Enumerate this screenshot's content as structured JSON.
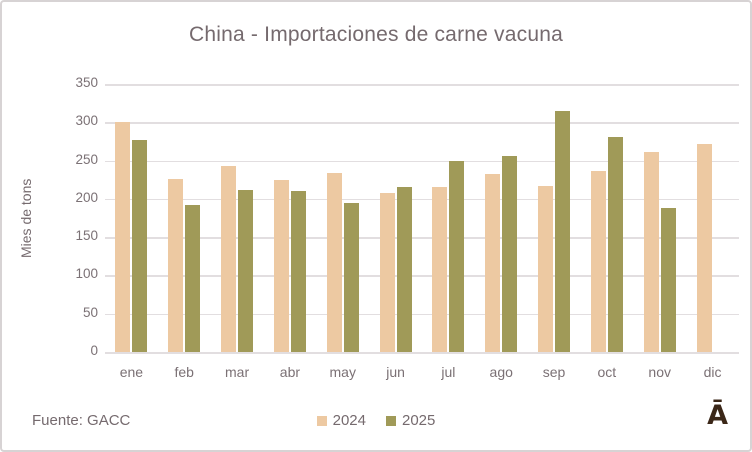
{
  "chart_data": {
    "type": "bar",
    "title": "China - Importaciones de carne vacuna",
    "xlabel": "",
    "ylabel": "Mies de tons",
    "categories": [
      "ene",
      "feb",
      "mar",
      "abr",
      "may",
      "jun",
      "jul",
      "ago",
      "sep",
      "oct",
      "nov",
      "dic"
    ],
    "series": [
      {
        "name": "2024",
        "color": "#edc9a2",
        "values": [
          301,
          226,
          243,
          224,
          234,
          208,
          215,
          232,
          217,
          237,
          261,
          272
        ]
      },
      {
        "name": "2025",
        "color": "#a09a58",
        "values": [
          277,
          192,
          212,
          210,
          194,
          216,
          250,
          256,
          315,
          281,
          188,
          null
        ]
      }
    ],
    "ylim": [
      0,
      350
    ],
    "ytick_step": 50,
    "grid": true,
    "legend_position": "bottom-center"
  },
  "footer": {
    "source": "Fuente: GACC",
    "logo": "Ā"
  },
  "colors": {
    "background": "#ffffff",
    "border": "#d7d3d4",
    "gridline": "#e2dee0",
    "title_text": "#756a6e",
    "axis_text": "#7b7175",
    "series_2024": "#edc9a2",
    "series_2025": "#a09a58",
    "logo": "#3b2718"
  }
}
